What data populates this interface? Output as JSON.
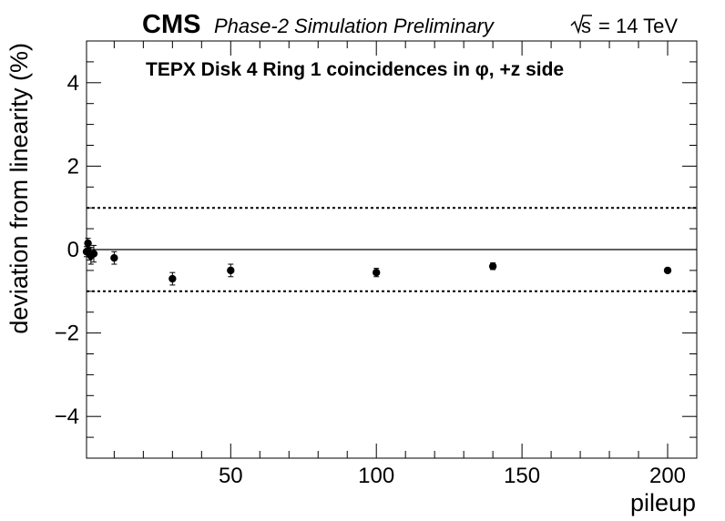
{
  "header": {
    "experiment": "CMS",
    "subtitle": "Phase-2 Simulation Preliminary",
    "energy_sqrt": "s",
    "energy_rest": "= 14 TeV"
  },
  "chart_data": {
    "type": "scatter",
    "title": "TEPX Disk 4 Ring 1 coincidences in  φ, +z side",
    "xlabel": "pileup",
    "ylabel": "deviation from linearity (%)",
    "xlim": [
      0.5,
      210
    ],
    "ylim": [
      -5,
      5
    ],
    "x_ticks": [
      50,
      100,
      150,
      200
    ],
    "x_tick_labels": [
      "50",
      "100",
      "150",
      "200"
    ],
    "y_ticks": [
      -4,
      -2,
      0,
      2,
      4
    ],
    "y_tick_labels": [
      "−4",
      "−2",
      "0",
      "2",
      "4"
    ],
    "reference_lines": [
      {
        "y": 0,
        "style": "solid"
      },
      {
        "y": 1,
        "style": "dotted"
      },
      {
        "y": -1,
        "style": "dotted"
      }
    ],
    "series": [
      {
        "points": [
          {
            "x": 0.5,
            "y": -0.05,
            "err": 0.12
          },
          {
            "x": 1,
            "y": 0.15,
            "err": 0.12
          },
          {
            "x": 1.5,
            "y": -0.1,
            "err": 0.15
          },
          {
            "x": 2,
            "y": -0.15,
            "err": 0.2
          },
          {
            "x": 3,
            "y": -0.1,
            "err": 0.2
          },
          {
            "x": 10,
            "y": -0.2,
            "err": 0.15
          },
          {
            "x": 30,
            "y": -0.7,
            "err": 0.15
          },
          {
            "x": 50,
            "y": -0.5,
            "err": 0.15
          },
          {
            "x": 100,
            "y": -0.55,
            "err": 0.1
          },
          {
            "x": 140,
            "y": -0.4,
            "err": 0.08
          },
          {
            "x": 200,
            "y": -0.5,
            "err": 0.05
          }
        ]
      }
    ],
    "grid": false,
    "marker_color": "#000000"
  }
}
